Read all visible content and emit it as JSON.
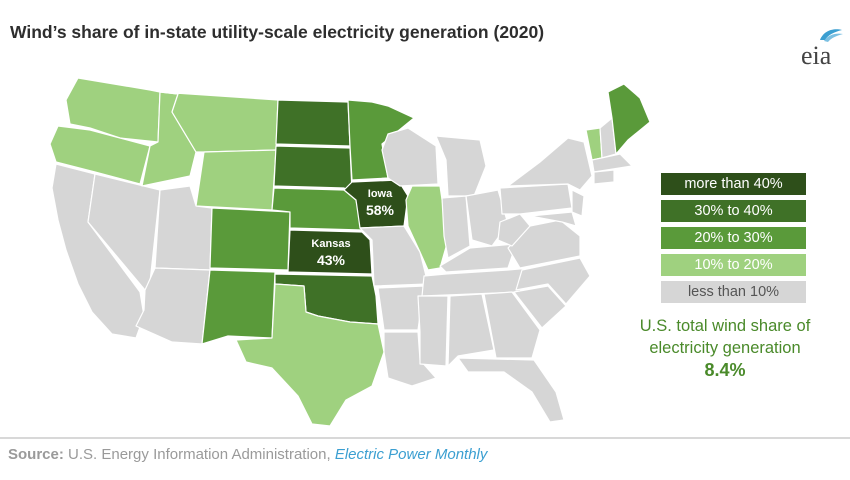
{
  "title": "Wind’s share of in-state utility-scale electricity generation (2020)",
  "logo": {
    "text": "eia",
    "icon": "eia-logo"
  },
  "colors": {
    "more_than_40": "#2e4f1a",
    "30_to_40": "#3f7127",
    "20_to_30": "#5a9a3a",
    "10_to_20": "#9fd17f",
    "less_than_10": "#d6d6d6",
    "total_text": "#4a8a2a",
    "source_link": "#3b9fd1"
  },
  "legend": [
    {
      "label": "more than 40%",
      "color": "#2e4f1a",
      "text_color": "#ffffff"
    },
    {
      "label": "30% to 40%",
      "color": "#3f7127",
      "text_color": "#ffffff"
    },
    {
      "label": "20% to 30%",
      "color": "#5a9a3a",
      "text_color": "#ffffff"
    },
    {
      "label": "10% to 20%",
      "color": "#9fd17f",
      "text_color": "#ffffff"
    },
    {
      "label": "less than 10%",
      "color": "#d6d6d6",
      "text_color": "#555555"
    }
  ],
  "highlights": {
    "iowa": {
      "name": "Iowa",
      "value": "58%"
    },
    "kansas": {
      "name": "Kansas",
      "value": "43%"
    }
  },
  "total": {
    "line1": "U.S. total wind share of",
    "line2": "electricity generation",
    "value": "8.4%"
  },
  "source": {
    "label": "Source:",
    "agency": "U.S. Energy Information Administration,",
    "publication": "Electric Power Monthly"
  }
}
